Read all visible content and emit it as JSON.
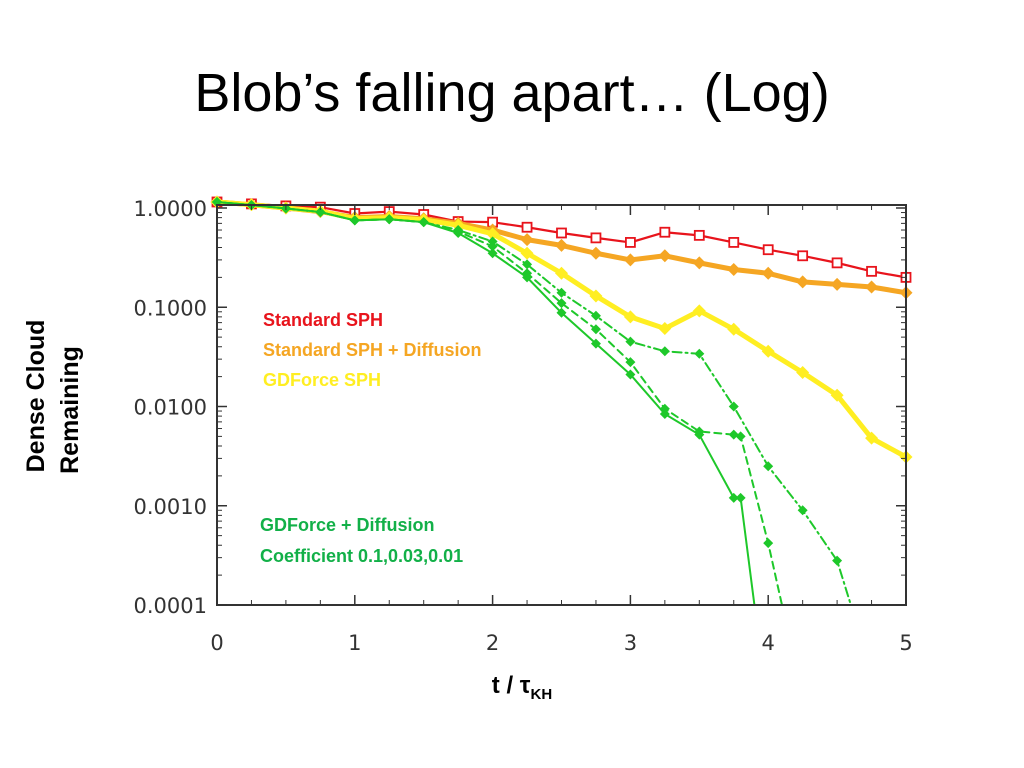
{
  "slide": {
    "title": "Blob’s falling apart… (Log)"
  },
  "chart_data": {
    "type": "line",
    "log_y": true,
    "xlim": [
      0,
      5
    ],
    "ylim": [
      0.0001,
      1.2
    ],
    "x_ticks": [
      "0",
      "1",
      "2",
      "3",
      "4",
      "5"
    ],
    "y_ticks": [
      "1.0000",
      "0.1000",
      "0.0100",
      "0.0010",
      "0.0001"
    ],
    "ylabel_lines": [
      "Dense Cloud",
      "Remaining"
    ],
    "xlabel": {
      "main": "t / τ",
      "sub": "KH"
    },
    "annotations": [
      {
        "lines": [
          "Standard SPH"
        ],
        "color": "#e8141c"
      },
      {
        "lines": [
          "Standard SPH + Diffusion"
        ],
        "color": "#f5a623"
      },
      {
        "lines": [
          "GDForce SPH"
        ],
        "color": "#ffee22"
      },
      {
        "lines": [
          "GDForce + Diffusion",
          "Coefficient 0.1,0.03,0.01"
        ],
        "color": "#12b048"
      }
    ],
    "series": [
      {
        "id": "standard-sph",
        "color": "#e8141c",
        "width": 2.2,
        "dash": "",
        "marker": "square",
        "x": [
          0,
          0.25,
          0.5,
          0.75,
          1.0,
          1.25,
          1.5,
          1.75,
          2.0,
          2.25,
          2.5,
          2.75,
          3.0,
          3.25,
          3.5,
          3.75,
          4.0,
          4.25,
          4.5,
          4.75,
          5.0
        ],
        "y": [
          1.15,
          1.1,
          1.05,
          1.02,
          0.88,
          0.92,
          0.86,
          0.73,
          0.72,
          0.64,
          0.56,
          0.5,
          0.45,
          0.57,
          0.53,
          0.45,
          0.38,
          0.33,
          0.28,
          0.23,
          0.2
        ]
      },
      {
        "id": "standard-sph-diffusion",
        "color": "#f5a623",
        "width": 5,
        "dash": "",
        "marker": "diamond",
        "x": [
          0,
          0.25,
          0.5,
          0.75,
          1.0,
          1.25,
          1.5,
          1.75,
          2.0,
          2.25,
          2.5,
          2.75,
          3.0,
          3.25,
          3.5,
          3.75,
          4.0,
          4.25,
          4.5,
          4.75,
          5.0
        ],
        "y": [
          1.15,
          1.08,
          1.0,
          0.92,
          0.8,
          0.82,
          0.78,
          0.7,
          0.6,
          0.48,
          0.42,
          0.35,
          0.3,
          0.33,
          0.28,
          0.24,
          0.22,
          0.18,
          0.17,
          0.16,
          0.14
        ]
      },
      {
        "id": "gdforce-sph",
        "color": "#ffee22",
        "width": 5,
        "dash": "",
        "marker": "diamond",
        "x": [
          0,
          0.25,
          0.5,
          0.75,
          1.0,
          1.25,
          1.5,
          1.75,
          2.0,
          2.25,
          2.5,
          2.75,
          3.0,
          3.25,
          3.5,
          3.75,
          4.0,
          4.25,
          4.5,
          4.75,
          5.0
        ],
        "y": [
          1.15,
          1.08,
          1.0,
          0.93,
          0.78,
          0.8,
          0.76,
          0.67,
          0.55,
          0.35,
          0.22,
          0.13,
          0.08,
          0.061,
          0.092,
          0.06,
          0.036,
          0.022,
          0.013,
          0.0048,
          0.0031
        ]
      },
      {
        "id": "gdforce-diffusion-0.1",
        "color": "#1ec82a",
        "width": 2,
        "dash": "9 4 2 4",
        "marker": "diamond",
        "x": [
          0,
          0.25,
          0.5,
          0.75,
          1.0,
          1.25,
          1.5,
          1.75,
          2.0,
          2.25,
          2.5,
          2.75,
          3.0,
          3.25,
          3.5,
          3.75,
          4.0,
          4.25,
          4.5,
          4.6
        ],
        "y": [
          1.15,
          1.07,
          0.99,
          0.91,
          0.75,
          0.77,
          0.72,
          0.6,
          0.46,
          0.27,
          0.14,
          0.082,
          0.045,
          0.036,
          0.034,
          0.01,
          0.0025,
          0.0009,
          0.00028,
          0.0001
        ]
      },
      {
        "id": "gdforce-diffusion-0.03",
        "color": "#1ec82a",
        "width": 2,
        "dash": "7 5",
        "marker": "diamond",
        "x": [
          0,
          0.25,
          0.5,
          0.75,
          1.0,
          1.25,
          1.5,
          1.75,
          2.0,
          2.25,
          2.5,
          2.75,
          3.0,
          3.25,
          3.5,
          3.75,
          3.8,
          4.0,
          4.1
        ],
        "y": [
          1.15,
          1.07,
          0.99,
          0.91,
          0.75,
          0.77,
          0.72,
          0.58,
          0.41,
          0.22,
          0.11,
          0.06,
          0.028,
          0.0095,
          0.0056,
          0.0052,
          0.005,
          0.00042,
          0.0001
        ]
      },
      {
        "id": "gdforce-diffusion-0.01",
        "color": "#1ec82a",
        "width": 2,
        "dash": "",
        "marker": "diamond",
        "x": [
          0,
          0.25,
          0.5,
          0.75,
          1.0,
          1.25,
          1.5,
          1.75,
          2.0,
          2.25,
          2.5,
          2.75,
          3.0,
          3.25,
          3.5,
          3.75,
          3.8,
          3.9
        ],
        "y": [
          1.15,
          1.07,
          0.99,
          0.91,
          0.75,
          0.77,
          0.72,
          0.56,
          0.35,
          0.2,
          0.088,
          0.043,
          0.021,
          0.0084,
          0.0052,
          0.0012,
          0.0012,
          0.0001
        ]
      }
    ]
  }
}
